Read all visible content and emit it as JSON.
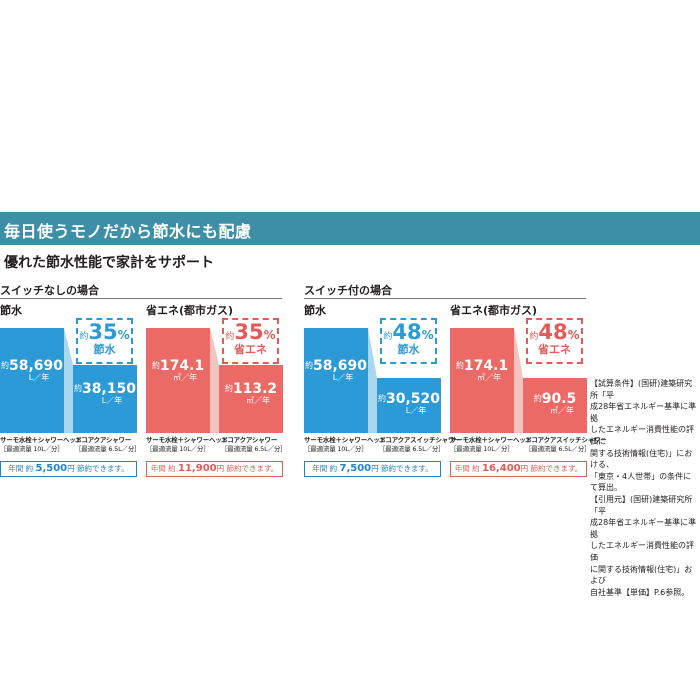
{
  "header": {
    "title": "毎日使うモノだから節水にも配慮",
    "subtitle": "優れた節水性能で家計をサポート"
  },
  "groups": [
    {
      "title": "スイッチなしの場合"
    },
    {
      "title": "スイッチ付の場合"
    }
  ],
  "colors": {
    "water_bar": "#2b9ad6",
    "water_connector": "#a9d7ef",
    "water_badge": "#2b9ad6",
    "energy_bar": "#ec6a66",
    "energy_connector": "#f6c2bf",
    "energy_badge": "#e35b58",
    "save_text_water": "#1f86c5",
    "save_text_energy": "#e35b58"
  },
  "chart_data": [
    {
      "type": "bar",
      "group": "スイッチなしの場合",
      "title": "節水",
      "theme": "water",
      "categories": [
        "サーモ水栓＋シャワーヘッド",
        "エコアクアシャワー"
      ],
      "captions_sub": [
        "［最適流量 10L／分］",
        "［最適流量 6.5L／分］"
      ],
      "values": [
        58690,
        38150
      ],
      "value_labels": [
        "58,690",
        "38,150"
      ],
      "approx_prefix": "約",
      "unit": "L／年",
      "ylim": [
        0,
        58690
      ],
      "reduction_pct": "35",
      "reduction_label": "節水",
      "saving": {
        "prefix": "年間",
        "approx": "約",
        "amount": "5,500",
        "unit": "円",
        "suffix": "節約できます。"
      }
    },
    {
      "type": "bar",
      "group": "スイッチなしの場合",
      "title": "省エネ(都市ガス)",
      "theme": "energy",
      "categories": [
        "サーモ水栓＋シャワーヘッド",
        "エコアクアシャワー"
      ],
      "captions_sub": [
        "［最適流量 10L／分］",
        "［最適流量 6.5L／分］"
      ],
      "values": [
        174.1,
        113.2
      ],
      "value_labels": [
        "174.1",
        "113.2"
      ],
      "approx_prefix": "約",
      "unit": "㎥／年",
      "ylim": [
        0,
        174.1
      ],
      "reduction_pct": "35",
      "reduction_label": "省エネ",
      "saving": {
        "prefix": "年間",
        "approx": "約",
        "amount": "11,900",
        "unit": "円",
        "suffix": "節約できます。"
      }
    },
    {
      "type": "bar",
      "group": "スイッチ付の場合",
      "title": "節水",
      "theme": "water",
      "categories": [
        "サーモ水栓＋シャワーヘッド",
        "エコアクアスイッチシャワー"
      ],
      "captions_sub": [
        "［最適流量 10L／分］",
        "［最適流量 6.5L／分］"
      ],
      "values": [
        58690,
        30520
      ],
      "value_labels": [
        "58,690",
        "30,520"
      ],
      "approx_prefix": "約",
      "unit": "L／年",
      "ylim": [
        0,
        58690
      ],
      "reduction_pct": "48",
      "reduction_label": "節水",
      "saving": {
        "prefix": "年間",
        "approx": "約",
        "amount": "7,500",
        "unit": "円",
        "suffix": "節約できます。"
      }
    },
    {
      "type": "bar",
      "group": "スイッチ付の場合",
      "title": "省エネ(都市ガス)",
      "theme": "energy",
      "categories": [
        "サーモ水栓＋シャワーヘッド",
        "エコアクアスイッチシャワー"
      ],
      "captions_sub": [
        "［最適流量 10L／分］",
        "［最適流量 6.5L／分］"
      ],
      "values": [
        174.1,
        90.5
      ],
      "value_labels": [
        "174.1",
        "90.5"
      ],
      "approx_prefix": "約",
      "unit": "㎥／年",
      "ylim": [
        0,
        174.1
      ],
      "reduction_pct": "48",
      "reduction_label": "省エネ",
      "saving": {
        "prefix": "年間",
        "approx": "約",
        "amount": "16,400",
        "unit": "円",
        "suffix": "節約できます。"
      }
    }
  ],
  "note": {
    "lines": [
      "【試算条件】(国研)建築研究所「平",
      "成28年省エネルギー基準に準拠",
      "したエネルギー消費性能の評価に",
      "関する技術情報(住宅)」における、",
      "「東京・4人世帯」の条件にて算出。",
      "【引用元】(国研)建築研究所「平",
      "成28年省エネルギー基準に準拠",
      "したエネルギー消費性能の評価",
      "に関する技術情報(住宅)」および",
      "自社基準【単価】P.6参照。"
    ]
  }
}
